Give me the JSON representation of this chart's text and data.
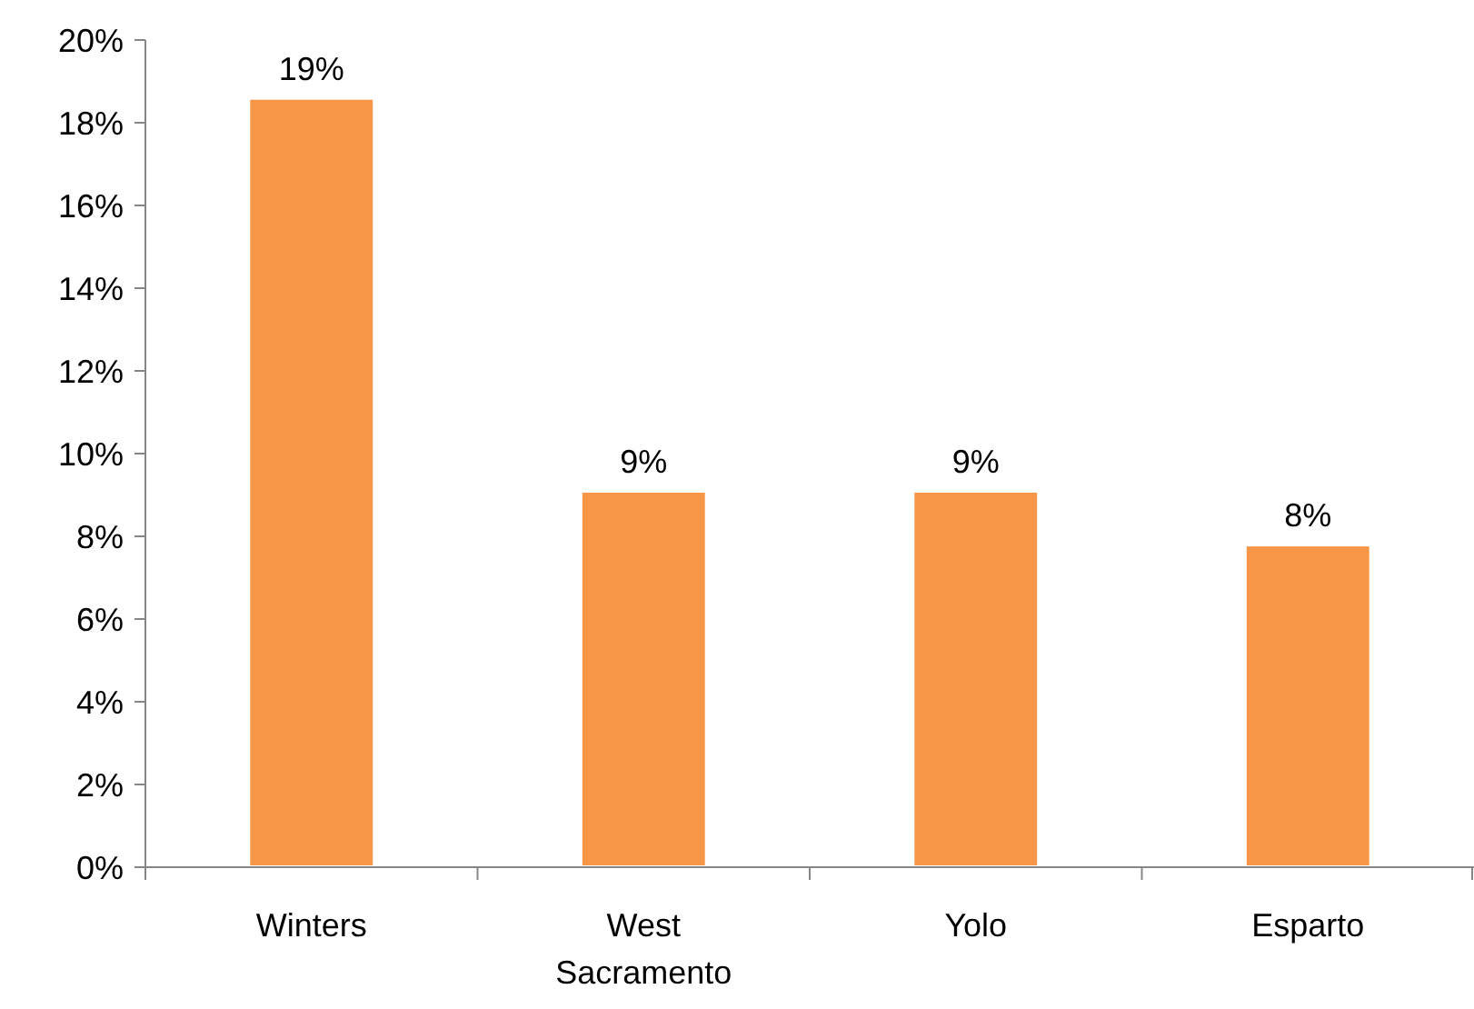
{
  "chart_data": {
    "type": "bar",
    "categories": [
      "Winters",
      "West Sacramento",
      "Yolo",
      "Esparto"
    ],
    "values": [
      18.6,
      9.1,
      9.1,
      7.8
    ],
    "color": "#f79646",
    "value_labels": [
      "19%",
      "9%",
      "9%",
      "8%"
    ],
    "ylim": [
      0,
      20
    ],
    "yticks": [
      {
        "value": 0,
        "label": "0%"
      },
      {
        "value": 2,
        "label": "2%"
      },
      {
        "value": 4,
        "label": "4%"
      },
      {
        "value": 6,
        "label": "6%"
      },
      {
        "value": 8,
        "label": "8%"
      },
      {
        "value": 10,
        "label": "10%"
      },
      {
        "value": 12,
        "label": "12%"
      },
      {
        "value": 14,
        "label": "14%"
      },
      {
        "value": 16,
        "label": "16%"
      },
      {
        "value": 18,
        "label": "18%"
      },
      {
        "value": 20,
        "label": "20%"
      }
    ],
    "grid": false
  }
}
